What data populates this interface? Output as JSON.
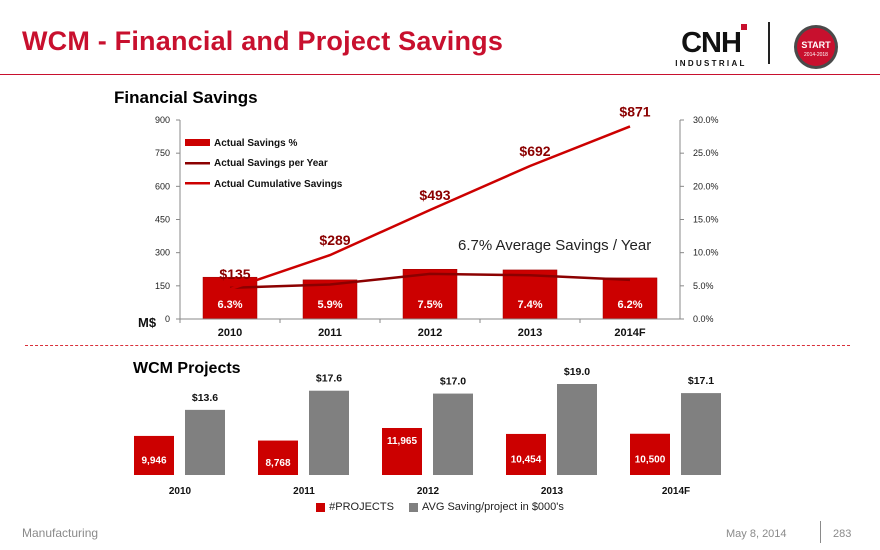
{
  "header": {
    "title": "WCM - Financial and Project Savings"
  },
  "logo": {
    "brand": "CNH",
    "subtitle": "INDUSTRIAL"
  },
  "badge": {
    "line1": "START",
    "line2": "2014-2018"
  },
  "colors": {
    "brand_red": "#c8102e",
    "bar_red": "#cc0000",
    "line_dark": "#8b0000",
    "line_red": "#cc0000",
    "grey": "#808080"
  },
  "chart_data": [
    {
      "type": "bar",
      "title": "Financial Savings",
      "categories": [
        "2010",
        "2011",
        "2012",
        "2013",
        "2014F"
      ],
      "series": [
        {
          "name": "Actual Savings %",
          "kind": "bar",
          "axis": "right",
          "values": [
            6.3,
            5.9,
            7.5,
            7.4,
            6.2
          ],
          "labels": [
            "6.3%",
            "5.9%",
            "7.5%",
            "7.4%",
            "6.2%"
          ]
        },
        {
          "name": "Actual Savings per Year",
          "kind": "line",
          "axis": "right",
          "values": [
            4.7,
            5.2,
            6.8,
            6.6,
            5.9
          ]
        },
        {
          "name": "Actual Cumulative Savings",
          "kind": "line",
          "axis": "left",
          "values": [
            135,
            289,
            493,
            692,
            871
          ],
          "labels": [
            "$135",
            "$289",
            "$493",
            "$692",
            "$871"
          ]
        }
      ],
      "left_axis": {
        "label": "M$",
        "ylim": [
          0,
          900
        ],
        "ticks": [
          "0",
          "150",
          "300",
          "450",
          "600",
          "750",
          "900"
        ]
      },
      "right_axis": {
        "ylim": [
          0,
          30
        ],
        "ticks": [
          "0.0%",
          "5.0%",
          "10.0%",
          "15.0%",
          "20.0%",
          "25.0%",
          "30.0%"
        ]
      },
      "annotation": "6.7% Average Savings / Year",
      "legend_position": "top-left"
    },
    {
      "type": "bar",
      "title": "WCM Projects",
      "categories": [
        "2010",
        "2011",
        "2012",
        "2013",
        "2014F"
      ],
      "series": [
        {
          "name": "#PROJECTS",
          "values": [
            9946,
            8768,
            11965,
            10454,
            10500
          ],
          "labels": [
            "9,946",
            "8,768",
            "11,965",
            "10,454",
            "10,500"
          ]
        },
        {
          "name": "AVG Saving/project in $000's",
          "values": [
            13.6,
            17.6,
            17.0,
            19.0,
            17.1
          ],
          "labels": [
            "$13.6",
            "$17.6",
            "$17.0",
            "$19.0",
            "$17.1"
          ]
        }
      ],
      "legend_position": "bottom"
    }
  ],
  "footer": {
    "left": "Manufacturing",
    "date": "May 8, 2014",
    "page": "283"
  }
}
